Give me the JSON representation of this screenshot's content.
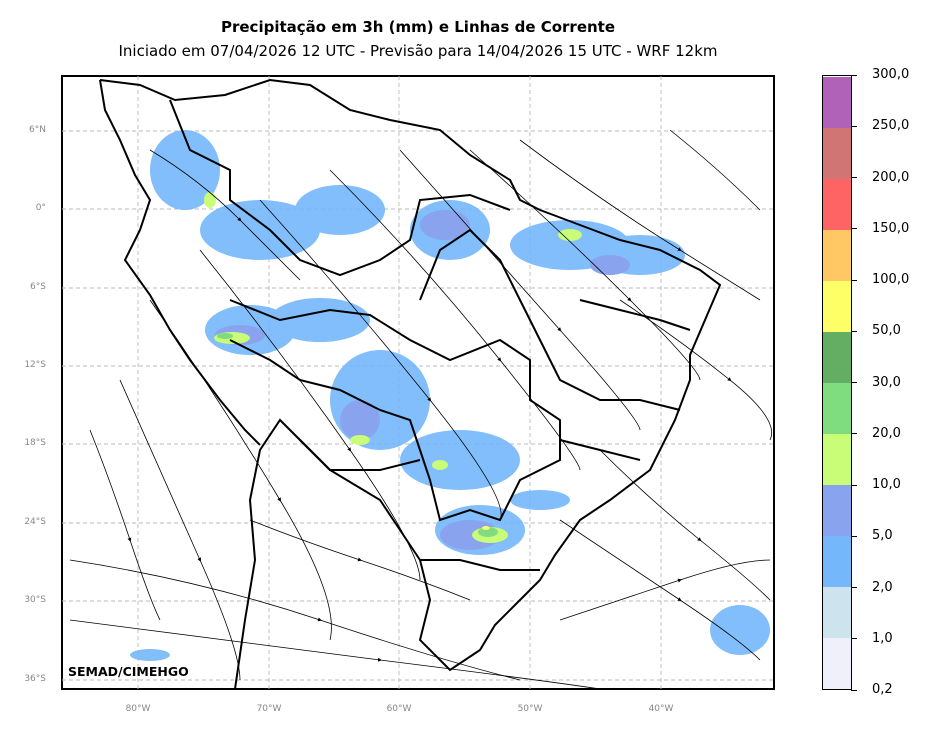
{
  "title": "Precipitação em 3h (mm) e Linhas de Corrente",
  "subtitle": "Iniciado em 07/04/2026 12 UTC - Previsão para 14/04/2026 15 UTC - WRF 12km",
  "watermark": "SEMAD/CIMEHGO",
  "lat_labels": [
    "6°N",
    "0°",
    "6°S",
    "12°S",
    "18°S",
    "24°S",
    "30°S",
    "36°S"
  ],
  "lon_labels": [
    "80°W",
    "70°W",
    "60°W",
    "50°W",
    "40°W"
  ],
  "colorbar": {
    "labels": [
      "0,2",
      "1,0",
      "2,0",
      "5,0",
      "10,0",
      "20,0",
      "30,0",
      "50,0",
      "100,0",
      "150,0",
      "200,0",
      "250,0",
      "300,0"
    ],
    "colors": [
      "#f0f0fa",
      "#cde4ee",
      "#74b7fb",
      "#8aa3ee",
      "#c9fd77",
      "#7fdc7f",
      "#63ae63",
      "#fefe66",
      "#ffc864",
      "#fe6464",
      "#d17474",
      "#b061b8"
    ]
  }
}
